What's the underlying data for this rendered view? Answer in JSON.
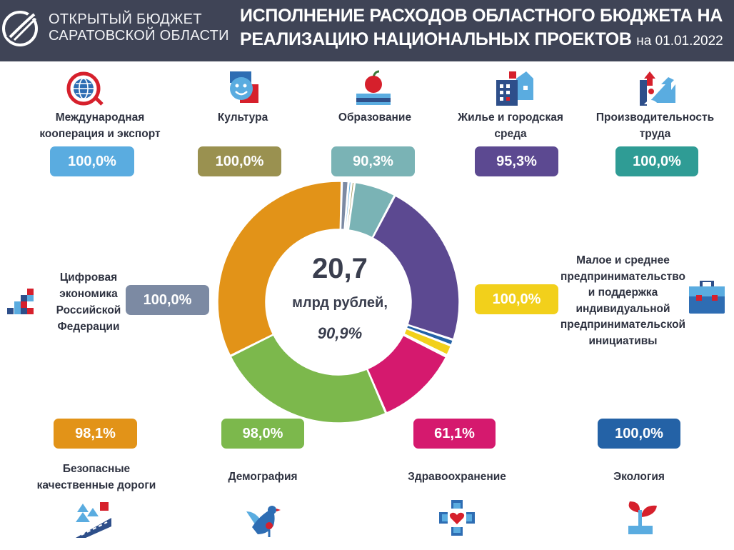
{
  "header": {
    "org_line1": "ОТКРЫТЫЙ БЮДЖЕТ",
    "org_line2": "САРАТОВСКОЙ ОБЛАСТИ",
    "title_line1": "ИСПОЛНЕНИЕ РАСХОДОВ ОБЛАСТНОГО БЮДЖЕТА НА",
    "title_line2": "РЕАЛИЗАЦИЮ НАЦИОНАЛЬНЫХ ПРОЕКТОВ",
    "date": "на 01.01.2022"
  },
  "center": {
    "total": "20,7",
    "unit": "млрд рублей,",
    "percent": "90,9%"
  },
  "categories": [
    {
      "label": [
        "Международная",
        "кооперация и экспорт"
      ],
      "percent": "100,0%",
      "color": "#5aace0",
      "icon": "globe-icon"
    },
    {
      "label": [
        "Культура"
      ],
      "percent": "100,0%",
      "color": "#9a9150",
      "icon": "theatre-mask-icon"
    },
    {
      "label": [
        "Образование"
      ],
      "percent": "90,3%",
      "color": "#7ab3b5",
      "icon": "apple-book-icon"
    },
    {
      "label": [
        "Жилье и городская",
        "среда"
      ],
      "percent": "95,3%",
      "color": "#5c4991",
      "icon": "houses-icon"
    },
    {
      "label": [
        "Производительность",
        "труда"
      ],
      "percent": "100,0%",
      "color": "#2f9c95",
      "icon": "growth-arrow-icon"
    },
    {
      "label": [
        "Малое и среднее",
        "предпринимательство",
        "и поддержка",
        "индивидуальной",
        "предпринимательской",
        "инициативы"
      ],
      "percent": "100,0%",
      "color": "#f2d01b",
      "icon": "briefcase-icon"
    },
    {
      "label": [
        "Экология"
      ],
      "percent": "100,0%",
      "color": "#2462a6",
      "icon": "sprout-icon"
    },
    {
      "label": [
        "Здравоохранение"
      ],
      "percent": "61,1%",
      "color": "#d5196e",
      "icon": "medical-heart-icon"
    },
    {
      "label": [
        "Демография"
      ],
      "percent": "98,0%",
      "color": "#7cb84c",
      "icon": "bird-icon"
    },
    {
      "label": [
        "Безопасные",
        "качественные дороги"
      ],
      "percent": "98,1%",
      "color": "#e29318",
      "icon": "road-trees-icon"
    },
    {
      "label": [
        "Цифровая",
        "экономика",
        "Российской",
        "Федерации"
      ],
      "percent": "100,0%",
      "color": "#7c8aa3",
      "icon": "pixel-squares-icon"
    }
  ],
  "chart_data": {
    "type": "pie",
    "categories": [
      "Цифровая экономика Российской Федерации",
      "Международная кооперация и экспорт",
      "Культура",
      "Образование",
      "Жилье и городская среда",
      "Экология",
      "Малое и среднее предпринимательство и поддержка индивидуальной предпринимательской инициативы",
      "Производительность труда",
      "Здравоохранение",
      "Демография",
      "Безопасные качественные дороги"
    ],
    "values": [
      0.9,
      0.4,
      0.4,
      5.6,
      22.3,
      0.8,
      1.4,
      0.2,
      11.1,
      24.1,
      32.8
    ],
    "colors": [
      "#7c8aa3",
      "#5aace0",
      "#9a9150",
      "#7ab3b5",
      "#5c4991",
      "#2462a6",
      "#f2d01b",
      "#2f9c95",
      "#d5196e",
      "#7cb84c",
      "#e29318"
    ]
  }
}
